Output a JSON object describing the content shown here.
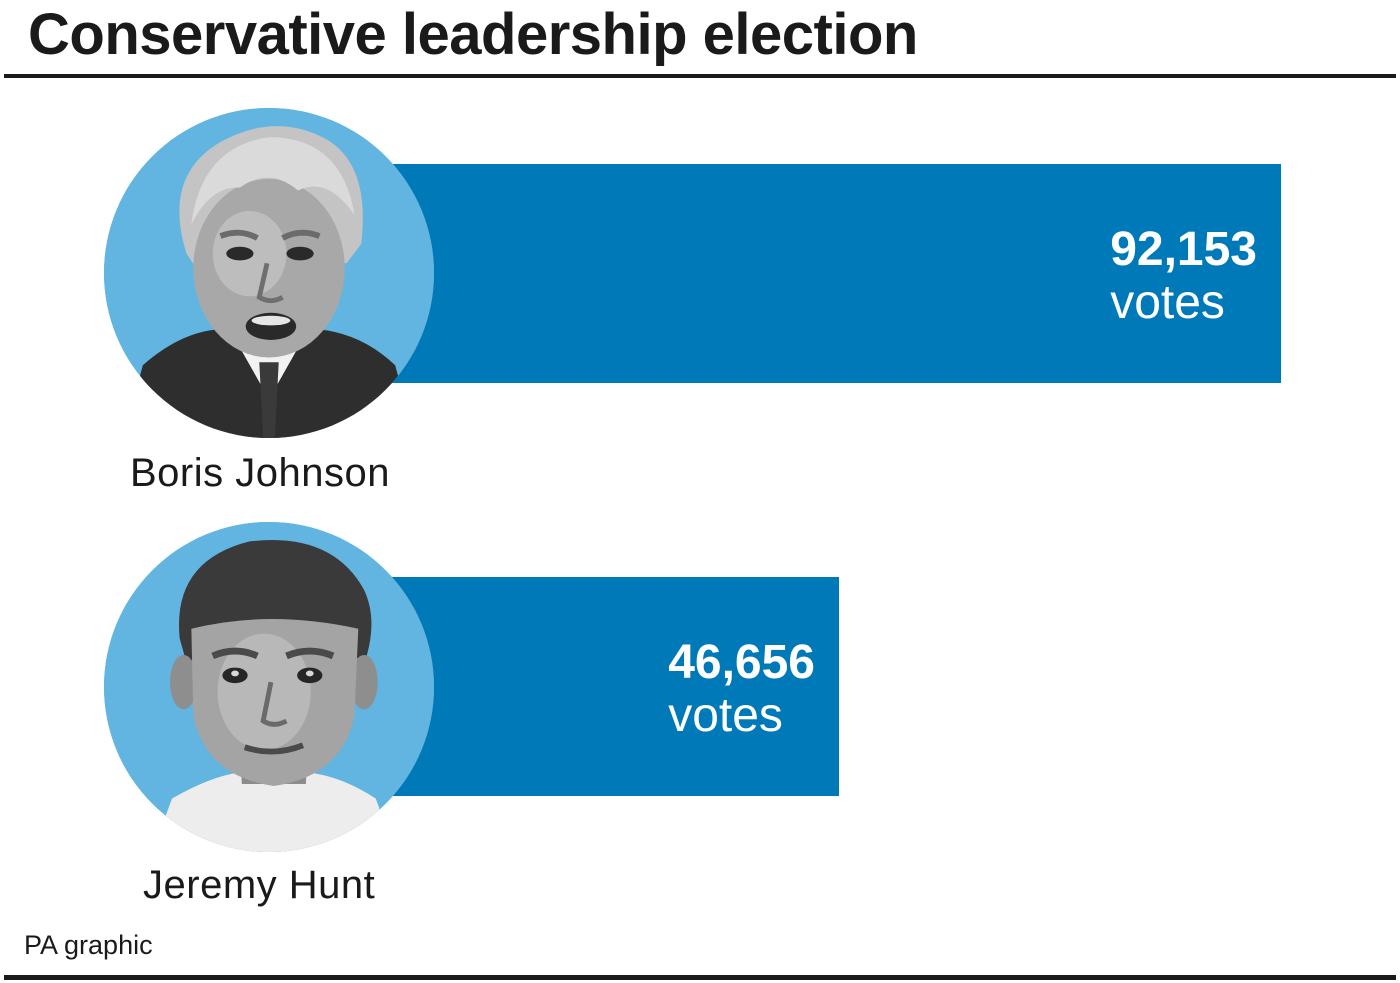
{
  "title": "Conservative leadership election",
  "source": "PA graphic",
  "colors": {
    "bar": "#0079b8",
    "portrait_background": "#62b5e0",
    "rule": "#1a1a1a"
  },
  "chart_data": {
    "type": "bar",
    "orientation": "horizontal",
    "title": "Conservative leadership election",
    "categories": [
      "Boris Johnson",
      "Jeremy Hunt"
    ],
    "values": [
      92153,
      46656
    ],
    "unit": "votes",
    "value_labels": [
      "92,153",
      "46,656"
    ],
    "xlabel": "",
    "ylabel": "",
    "grid": false,
    "legend": "none"
  },
  "candidates": [
    {
      "name": "Boris Johnson",
      "value_label": "92,153",
      "unit": "votes",
      "portrait_icon": "boris-johnson-portrait-icon"
    },
    {
      "name": "Jeremy Hunt",
      "value_label": "46,656",
      "unit": "votes",
      "portrait_icon": "jeremy-hunt-portrait-icon"
    }
  ]
}
